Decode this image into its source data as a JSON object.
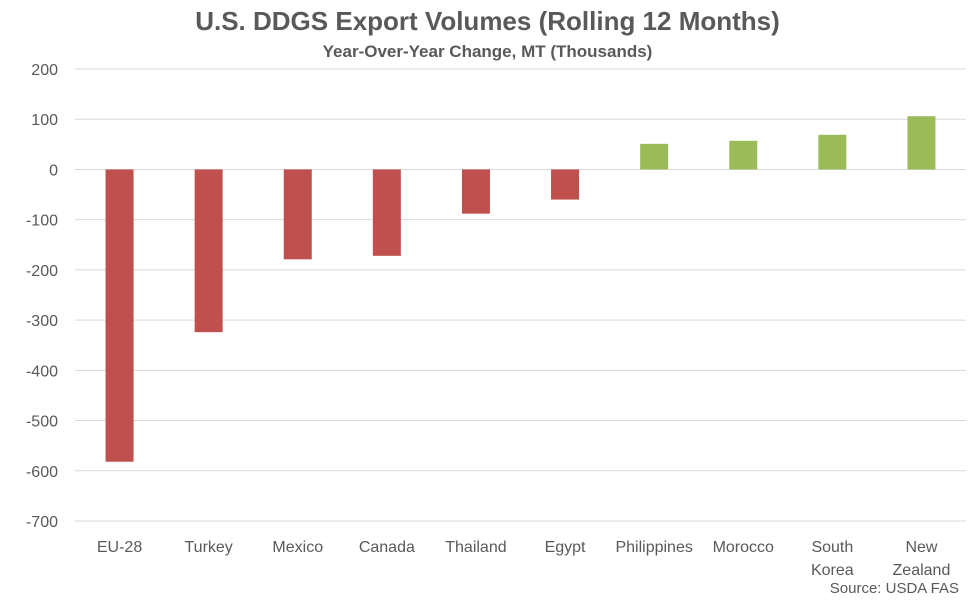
{
  "chart_data": {
    "type": "bar",
    "title": "U.S. DDGS Export Volumes (Rolling 12 Months)",
    "subtitle": "Year-Over-Year Change, MT (Thousands)",
    "source": "Source: USDA FAS",
    "categories": [
      [
        "EU-28"
      ],
      [
        "Turkey"
      ],
      [
        "Mexico"
      ],
      [
        "Canada"
      ],
      [
        "Thailand"
      ],
      [
        "Egypt"
      ],
      [
        "Philippines"
      ],
      [
        "Morocco"
      ],
      [
        "South",
        "Korea"
      ],
      [
        "New",
        "Zealand"
      ]
    ],
    "values": [
      -582,
      -324,
      -179,
      -172,
      -88,
      -60,
      51,
      57,
      69,
      106
    ],
    "ylim": [
      -700,
      200
    ],
    "yticks": [
      200,
      100,
      0,
      -100,
      -200,
      -300,
      -400,
      -500,
      -600,
      -700
    ],
    "grid": true,
    "colors": {
      "negative": "#c0504d",
      "positive": "#9bbb59",
      "grid": "#d9d9d9",
      "text": "#595959"
    }
  }
}
